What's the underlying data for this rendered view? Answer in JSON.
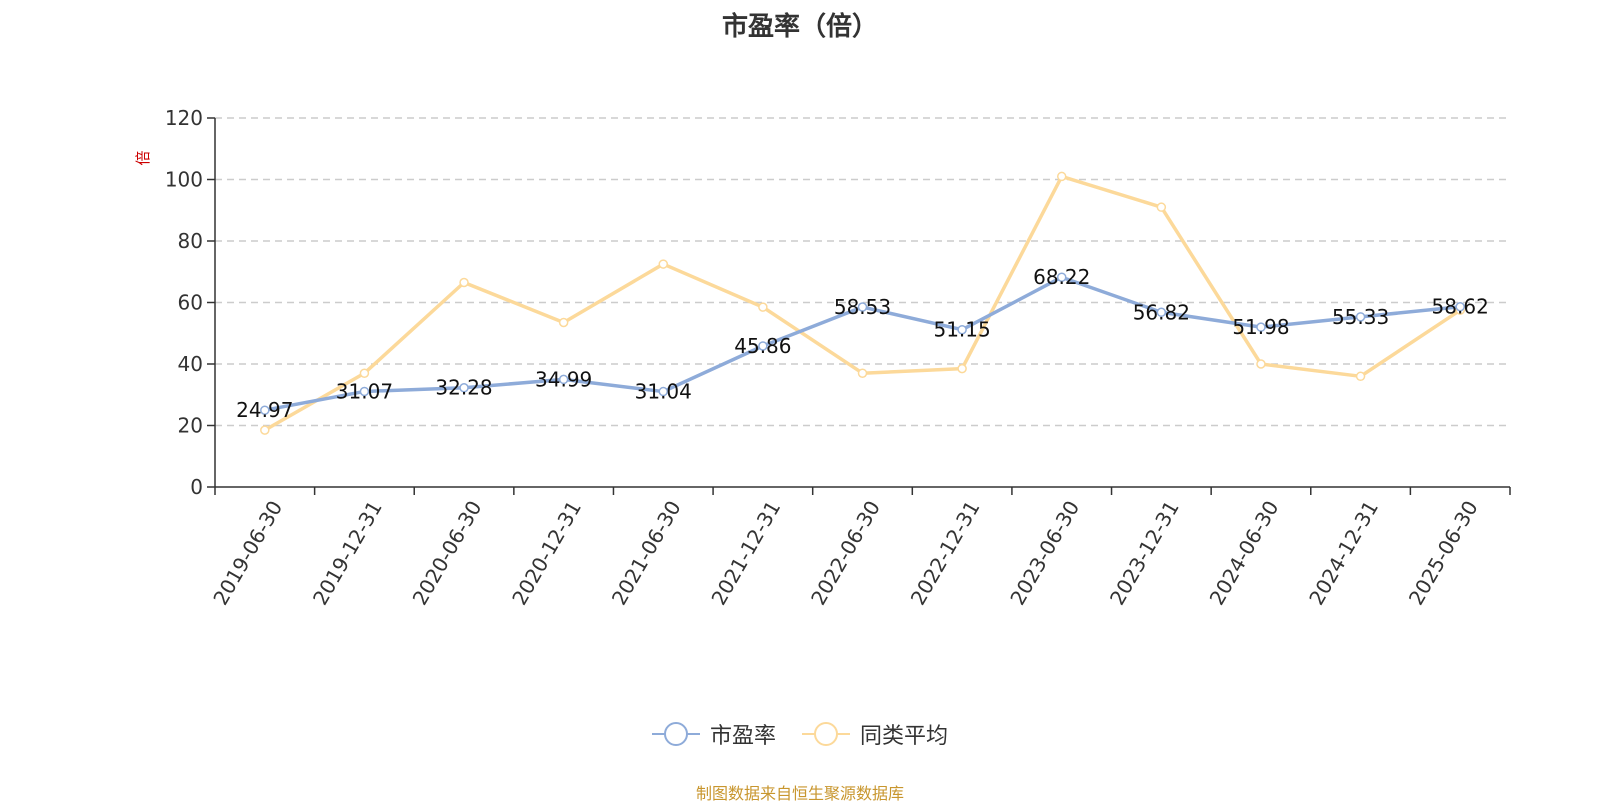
{
  "title": "市盈率（倍）",
  "unit_label": "倍",
  "source_note": "制图数据来自恒生聚源数据库",
  "colors": {
    "series_pe": "#8eabd9",
    "series_avg": "#fcd99a",
    "grid": "#cccccc",
    "axis": "#333333"
  },
  "chart_data": {
    "type": "line",
    "title": "市盈率（倍）",
    "xlabel": "",
    "ylabel": "倍",
    "ylim": [
      0,
      120
    ],
    "yticks": [
      0,
      20,
      40,
      60,
      80,
      100,
      120
    ],
    "grid": true,
    "legend_position": "bottom-center",
    "categories": [
      "2019-06-30",
      "2019-12-31",
      "2020-06-30",
      "2020-12-31",
      "2021-06-30",
      "2021-12-31",
      "2022-06-30",
      "2022-12-31",
      "2023-06-30",
      "2023-12-31",
      "2024-06-30",
      "2024-12-31",
      "2025-06-30"
    ],
    "series": [
      {
        "name": "市盈率",
        "values": [
          24.97,
          31.07,
          32.28,
          34.99,
          31.04,
          45.86,
          58.53,
          51.15,
          68.22,
          56.82,
          51.98,
          55.33,
          58.62
        ],
        "labels": [
          "24.97",
          "31.07",
          "32.28",
          "34.99",
          "31.04",
          "45.86",
          "58.53",
          "51.15",
          "68.22",
          "56.82",
          "51.98",
          "55.33",
          "58.62"
        ]
      },
      {
        "name": "同类平均",
        "values": [
          18.5,
          37.0,
          66.5,
          53.5,
          72.5,
          58.5,
          37.0,
          38.5,
          101.0,
          91.0,
          40.0,
          36.0,
          57.5
        ]
      }
    ]
  }
}
